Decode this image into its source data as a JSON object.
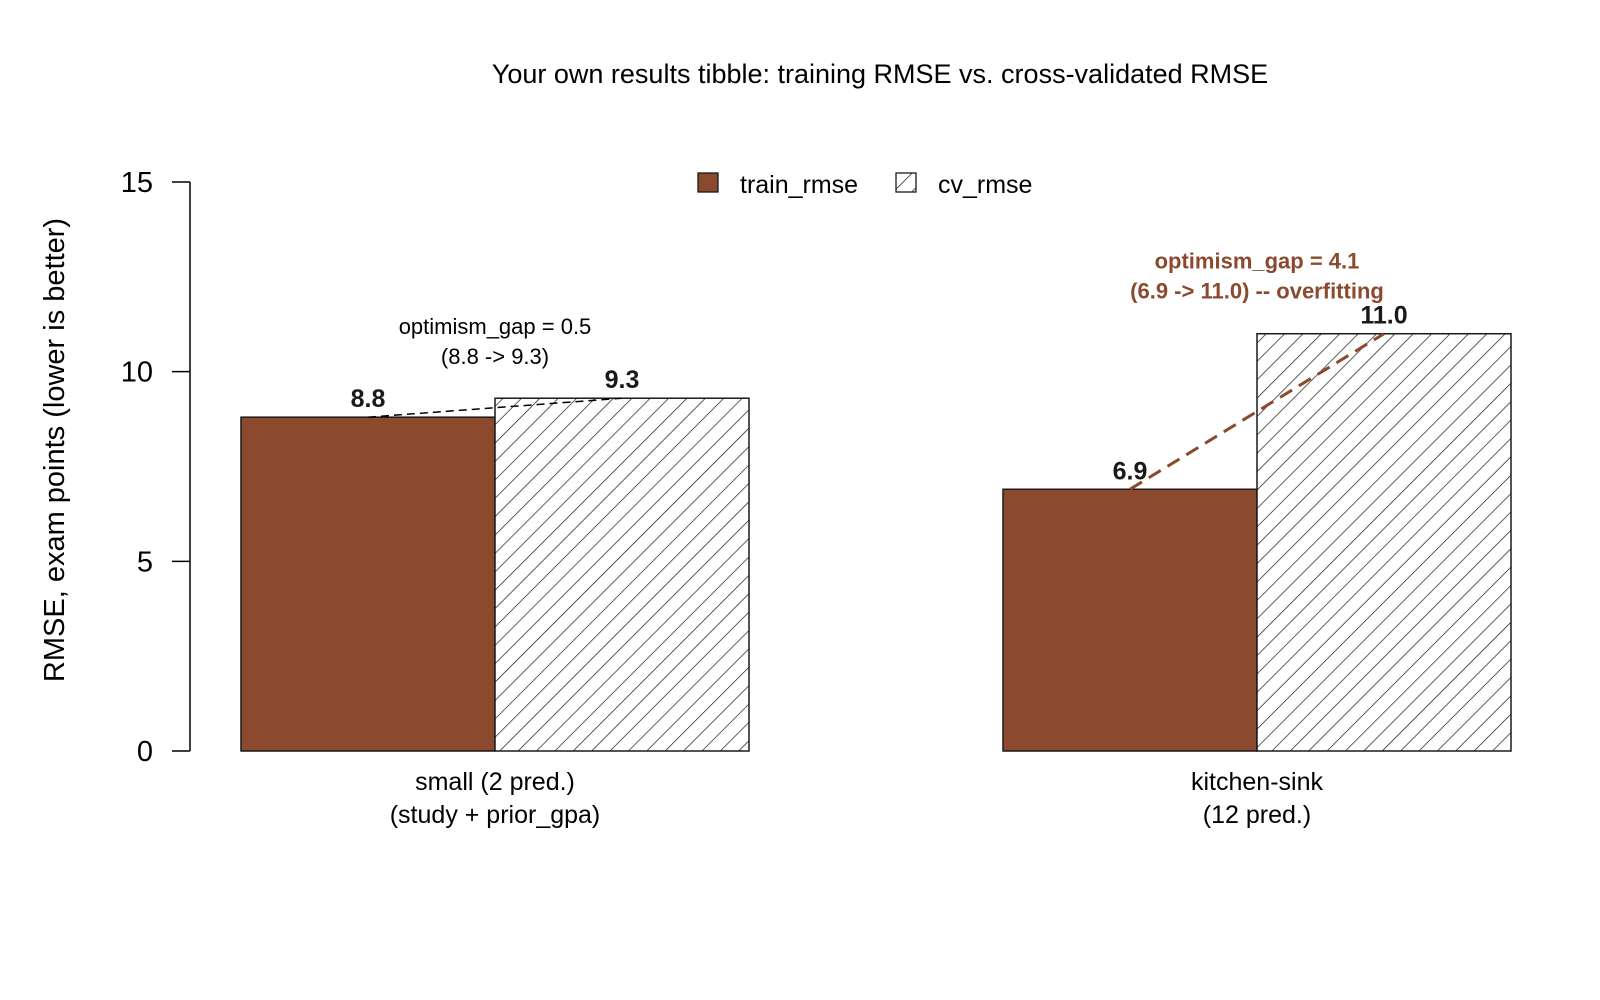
{
  "colors": {
    "train_fill": "#8B4A2E",
    "cv_fill": "#ffffff",
    "outline": "#1a1a1a",
    "highlight": "#8B4A2E"
  },
  "chart_data": {
    "type": "bar",
    "title": "Your own results tibble: training RMSE vs. cross-validated RMSE",
    "ylabel": "RMSE, exam points (lower is better)",
    "ylim": [
      0,
      15
    ],
    "yticks": [
      0,
      5,
      10,
      15
    ],
    "categories": [
      [
        "small (2 pred.)",
        "(study + prior_gpa)"
      ],
      [
        "kitchen-sink",
        "(12 pred.)"
      ]
    ],
    "series": [
      {
        "name": "train_rmse",
        "values": [
          8.8,
          6.9
        ],
        "labels": [
          "8.8",
          "6.9"
        ],
        "fill": "solid"
      },
      {
        "name": "cv_rmse",
        "values": [
          9.3,
          11.0
        ],
        "labels": [
          "9.3",
          "11.0"
        ],
        "fill": "hatched"
      }
    ],
    "legend": {
      "placement": "top",
      "entries": [
        "train_rmse",
        "cv_rmse"
      ]
    },
    "annotations": [
      {
        "lines": [
          "optimism_gap = 0.5",
          "(8.8 -> 9.3)"
        ],
        "emphasis": false
      },
      {
        "lines": [
          "optimism_gap = 4.1",
          "(6.9 -> 11.0) -- overfitting"
        ],
        "emphasis": true
      }
    ],
    "grid": false
  }
}
